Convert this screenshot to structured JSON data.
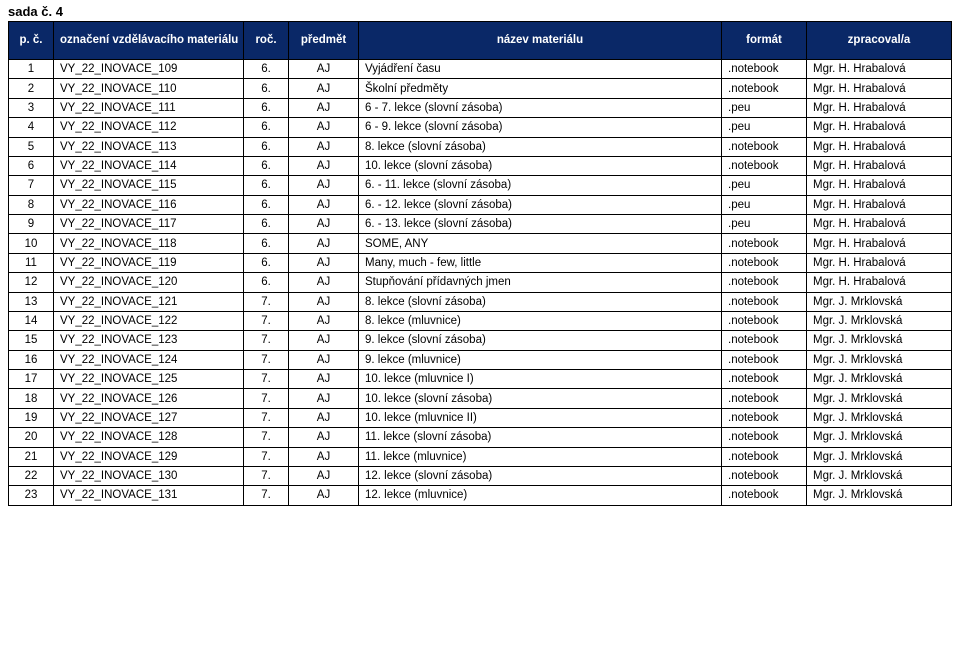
{
  "title": "sada č. 4",
  "columns": [
    "p. č.",
    "označení\nvzdělávacího materiálu",
    "roč.",
    "předmět",
    "název materiálu",
    "formát",
    "zpracoval/a"
  ],
  "rows": [
    [
      "1",
      "VY_22_INOVACE_109",
      "6.",
      "AJ",
      "Vyjádření času",
      ".notebook",
      "Mgr. H. Hrabalová"
    ],
    [
      "2",
      "VY_22_INOVACE_110",
      "6.",
      "AJ",
      "Školní předměty",
      ".notebook",
      "Mgr. H. Hrabalová"
    ],
    [
      "3",
      "VY_22_INOVACE_111",
      "6.",
      "AJ",
      "6 - 7. lekce (slovní zásoba)",
      ".peu",
      "Mgr. H. Hrabalová"
    ],
    [
      "4",
      "VY_22_INOVACE_112",
      "6.",
      "AJ",
      "6 - 9. lekce (slovní zásoba)",
      ".peu",
      "Mgr. H. Hrabalová"
    ],
    [
      "5",
      "VY_22_INOVACE_113",
      "6.",
      "AJ",
      "8. lekce (slovní zásoba)",
      ".notebook",
      "Mgr. H. Hrabalová"
    ],
    [
      "6",
      "VY_22_INOVACE_114",
      "6.",
      "AJ",
      "10. lekce (slovní zásoba)",
      ".notebook",
      "Mgr. H. Hrabalová"
    ],
    [
      "7",
      "VY_22_INOVACE_115",
      "6.",
      "AJ",
      "6. - 11. lekce (slovní zásoba)",
      ".peu",
      "Mgr. H. Hrabalová"
    ],
    [
      "8",
      "VY_22_INOVACE_116",
      "6.",
      "AJ",
      "6. - 12. lekce (slovní zásoba)",
      ".peu",
      "Mgr. H. Hrabalová"
    ],
    [
      "9",
      "VY_22_INOVACE_117",
      "6.",
      "AJ",
      "6. - 13. lekce (slovní zásoba)",
      ".peu",
      "Mgr. H. Hrabalová"
    ],
    [
      "10",
      "VY_22_INOVACE_118",
      "6.",
      "AJ",
      "SOME, ANY",
      ".notebook",
      "Mgr. H. Hrabalová"
    ],
    [
      "11",
      "VY_22_INOVACE_119",
      "6.",
      "AJ",
      "Many, much  - few, little",
      ".notebook",
      "Mgr. H. Hrabalová"
    ],
    [
      "12",
      "VY_22_INOVACE_120",
      "6.",
      "AJ",
      "Stupňování přídavných jmen",
      ".notebook",
      "Mgr. H. Hrabalová"
    ],
    [
      "13",
      "VY_22_INOVACE_121",
      "7.",
      "AJ",
      "8. lekce (slovní zásoba)",
      ".notebook",
      "Mgr. J. Mrklovská"
    ],
    [
      "14",
      "VY_22_INOVACE_122",
      "7.",
      "AJ",
      "8. lekce (mluvnice)",
      ".notebook",
      "Mgr. J. Mrklovská"
    ],
    [
      "15",
      "VY_22_INOVACE_123",
      "7.",
      "AJ",
      "9. lekce (slovní zásoba)",
      ".notebook",
      "Mgr. J. Mrklovská"
    ],
    [
      "16",
      "VY_22_INOVACE_124",
      "7.",
      "AJ",
      "9. lekce (mluvnice)",
      ".notebook",
      "Mgr. J. Mrklovská"
    ],
    [
      "17",
      "VY_22_INOVACE_125",
      "7.",
      "AJ",
      "10. lekce (mluvnice I)",
      ".notebook",
      "Mgr. J. Mrklovská"
    ],
    [
      "18",
      "VY_22_INOVACE_126",
      "7.",
      "AJ",
      "10. lekce (slovní zásoba)",
      ".notebook",
      "Mgr. J. Mrklovská"
    ],
    [
      "19",
      "VY_22_INOVACE_127",
      "7.",
      "AJ",
      "10. lekce (mluvnice II)",
      ".notebook",
      "Mgr. J. Mrklovská"
    ],
    [
      "20",
      "VY_22_INOVACE_128",
      "7.",
      "AJ",
      "11. lekce (slovní zásoba)",
      ".notebook",
      "Mgr. J. Mrklovská"
    ],
    [
      "21",
      "VY_22_INOVACE_129",
      "7.",
      "AJ",
      "11. lekce (mluvnice)",
      ".notebook",
      "Mgr. J. Mrklovská"
    ],
    [
      "22",
      "VY_22_INOVACE_130",
      "7.",
      "AJ",
      "12. lekce (slovní zásoba)",
      ".notebook",
      "Mgr. J. Mrklovská"
    ],
    [
      "23",
      "VY_22_INOVACE_131",
      "7.",
      "AJ",
      "12. lekce (mluvnice)",
      ".notebook",
      "Mgr. J. Mrklovská"
    ]
  ]
}
